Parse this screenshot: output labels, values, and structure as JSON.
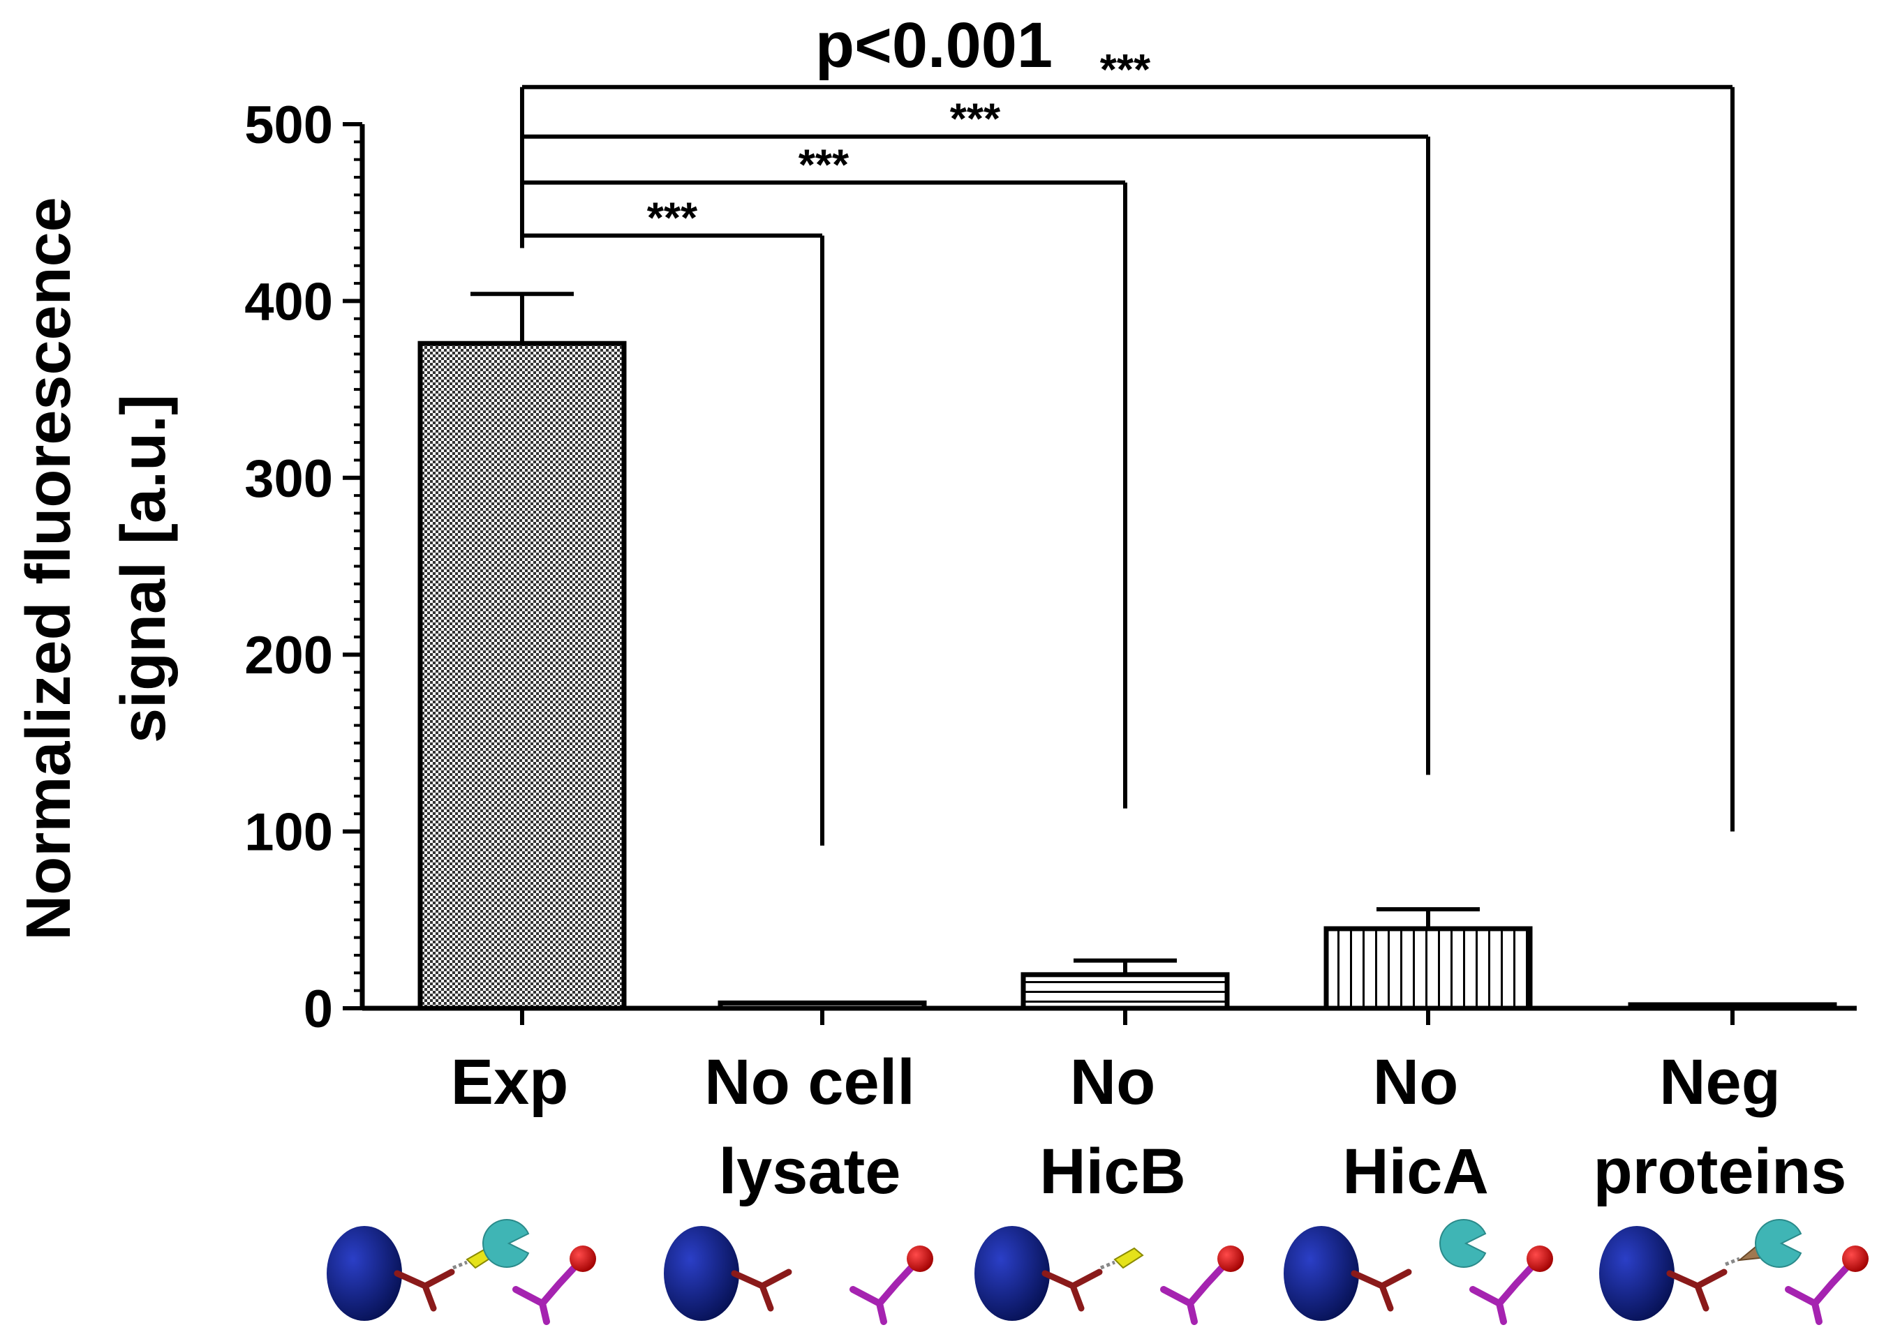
{
  "chart_data": {
    "type": "bar",
    "categories": [
      [
        "Exp"
      ],
      [
        "No cell",
        "lysate"
      ],
      [
        "No",
        "HicB"
      ],
      [
        "No",
        "HicA"
      ],
      [
        "Neg",
        "proteins"
      ]
    ],
    "values": [
      376,
      3,
      19,
      45,
      2
    ],
    "errors": [
      28,
      0,
      8,
      11,
      0
    ],
    "patterns": [
      "checker",
      "none",
      "hlines",
      "vlines",
      "none"
    ],
    "ylabel": [
      "Normalized fluorescence",
      "signal [a.u.]"
    ],
    "xlabel": "",
    "ylim": [
      0,
      500
    ],
    "yticks": [
      0,
      100,
      200,
      300,
      400,
      500
    ],
    "grid": false,
    "significance": {
      "p_text": "p<0.001",
      "comparisons": [
        {
          "from": 0,
          "to": 1,
          "label": "***",
          "bar_level": 437,
          "from_drop_to": 430,
          "to_drop_to": 92
        },
        {
          "from": 0,
          "to": 2,
          "label": "***",
          "bar_level": 467,
          "from_drop_to": 430,
          "to_drop_to": 113
        },
        {
          "from": 0,
          "to": 3,
          "label": "***",
          "bar_level": 493,
          "from_drop_to": 430,
          "to_drop_to": 132
        },
        {
          "from": 0,
          "to": 4,
          "label": "***",
          "bar_level": 521,
          "from_drop_to": 430,
          "to_drop_to": 100
        }
      ]
    },
    "icons": [
      [
        "bead",
        "antibody",
        "yellow-linker",
        "hicb-cyan",
        "fluor-antibody"
      ],
      [
        "bead",
        "antibody",
        "fluor-antibody"
      ],
      [
        "bead",
        "antibody",
        "yellow-linker",
        "fluor-antibody"
      ],
      [
        "bead",
        "antibody",
        "hicb-cyan",
        "fluor-antibody"
      ],
      [
        "bead",
        "antibody",
        "brown-linker",
        "hicb-cyan",
        "fluor-antibody"
      ]
    ],
    "colors": {
      "bead": "#0b1a7a",
      "antibody": "#8a1a1a",
      "yellow_linker": "#e5e21a",
      "brown_linker": "#a07850",
      "hicb": "#3fb5b5",
      "fluor_antibody": "#a523b0",
      "fluor_dot": "#d60000"
    }
  }
}
